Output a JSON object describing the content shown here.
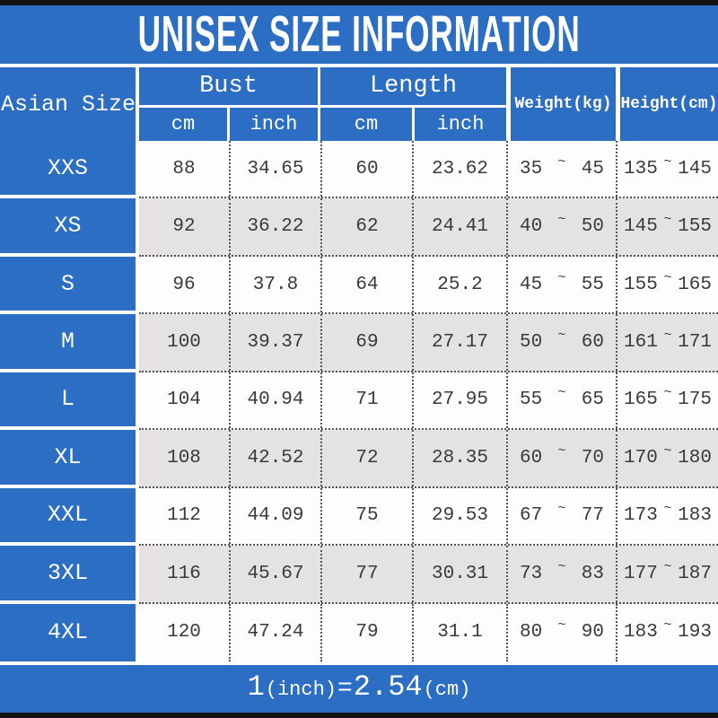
{
  "title": "UNISEX SIZE INFORMATION",
  "colors": {
    "blue": "#2b6ec3",
    "gray_row": "#e4e2e3",
    "white_row": "#fdfdfd",
    "text_dark": "#3a3a3a",
    "bar_black": "#111111"
  },
  "table": {
    "size_column_header": "Asian Size",
    "groups": [
      {
        "label": "Bust",
        "subs": [
          "cm",
          "inch"
        ]
      },
      {
        "label": "Length",
        "subs": [
          "cm",
          "inch"
        ]
      }
    ],
    "span_headers": [
      {
        "label": "Weight(kg)"
      },
      {
        "label": "Height(cm)"
      }
    ],
    "tilde": "~",
    "rows": [
      {
        "size": "XXS",
        "bust_cm": "88",
        "bust_inch": "34.65",
        "length_cm": "60",
        "length_inch": "23.62",
        "weight_min": "35",
        "weight_max": "45",
        "height_min": "135",
        "height_max": "145"
      },
      {
        "size": "XS",
        "bust_cm": "92",
        "bust_inch": "36.22",
        "length_cm": "62",
        "length_inch": "24.41",
        "weight_min": "40",
        "weight_max": "50",
        "height_min": "145",
        "height_max": "155"
      },
      {
        "size": "S",
        "bust_cm": "96",
        "bust_inch": "37.8",
        "length_cm": "64",
        "length_inch": "25.2",
        "weight_min": "45",
        "weight_max": "55",
        "height_min": "155",
        "height_max": "165"
      },
      {
        "size": "M",
        "bust_cm": "100",
        "bust_inch": "39.37",
        "length_cm": "69",
        "length_inch": "27.17",
        "weight_min": "50",
        "weight_max": "60",
        "height_min": "161",
        "height_max": "171"
      },
      {
        "size": "L",
        "bust_cm": "104",
        "bust_inch": "40.94",
        "length_cm": "71",
        "length_inch": "27.95",
        "weight_min": "55",
        "weight_max": "65",
        "height_min": "165",
        "height_max": "175"
      },
      {
        "size": "XL",
        "bust_cm": "108",
        "bust_inch": "42.52",
        "length_cm": "72",
        "length_inch": "28.35",
        "weight_min": "60",
        "weight_max": "70",
        "height_min": "170",
        "height_max": "180"
      },
      {
        "size": "XXL",
        "bust_cm": "112",
        "bust_inch": "44.09",
        "length_cm": "75",
        "length_inch": "29.53",
        "weight_min": "67",
        "weight_max": "77",
        "height_min": "173",
        "height_max": "183"
      },
      {
        "size": "3XL",
        "bust_cm": "116",
        "bust_inch": "45.67",
        "length_cm": "77",
        "length_inch": "30.31",
        "weight_min": "73",
        "weight_max": "83",
        "height_min": "177",
        "height_max": "187"
      },
      {
        "size": "4XL",
        "bust_cm": "120",
        "bust_inch": "47.24",
        "length_cm": "79",
        "length_inch": "31.1",
        "weight_min": "80",
        "weight_max": "90",
        "height_min": "183",
        "height_max": "193"
      }
    ]
  },
  "footer": {
    "text": "1(inch)=2.54(cm)",
    "parts": [
      "1",
      "(inch)",
      "=",
      "2.54",
      "(cm)"
    ]
  }
}
